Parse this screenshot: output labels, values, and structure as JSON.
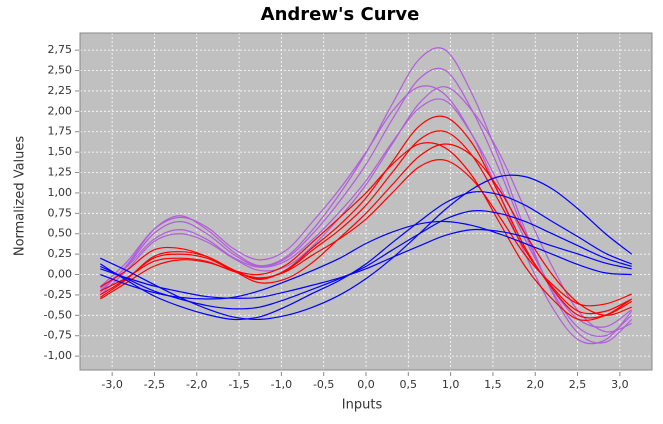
{
  "chart_data": {
    "type": "line",
    "title": "Andrew's Curve",
    "x_label": "Inputs",
    "y_label": "Normalized Values",
    "x": [
      -3.14,
      -2.83,
      -2.51,
      -2.2,
      -1.88,
      -1.57,
      -1.26,
      -0.94,
      -0.63,
      -0.31,
      0,
      0.31,
      0.63,
      0.94,
      1.26,
      1.57,
      1.88,
      2.2,
      2.51,
      2.83,
      3.14
    ],
    "series": [
      {
        "color": "#b25ddb",
        "values": [
          -0.2,
          0.1,
          0.5,
          0.65,
          0.5,
          0.25,
          0.1,
          0.2,
          0.5,
          0.9,
          1.35,
          1.9,
          2.4,
          2.5,
          2.0,
          1.3,
          0.5,
          -0.2,
          -0.65,
          -0.75,
          -0.5
        ]
      },
      {
        "color": "#b25ddb",
        "values": [
          -0.17,
          0.09,
          0.43,
          0.55,
          0.43,
          0.21,
          0.09,
          0.17,
          0.43,
          0.77,
          1.15,
          1.62,
          2.04,
          2.13,
          1.7,
          1.11,
          0.43,
          -0.17,
          -0.55,
          -0.64,
          -0.43
        ]
      },
      {
        "color": "#b25ddb",
        "values": [
          -0.22,
          0.11,
          0.55,
          0.72,
          0.55,
          0.28,
          0.11,
          0.22,
          0.55,
          0.99,
          1.49,
          2.09,
          2.64,
          2.75,
          2.2,
          1.43,
          0.55,
          -0.22,
          -0.72,
          -0.83,
          -0.55
        ]
      },
      {
        "color": "#b25ddb",
        "values": [
          -0.25,
          0.05,
          0.4,
          0.5,
          0.4,
          0.2,
          0.05,
          0.1,
          0.35,
          0.7,
          1.1,
          1.6,
          2.1,
          2.3,
          2.0,
          1.5,
          0.8,
          0.1,
          -0.45,
          -0.7,
          -0.6
        ]
      },
      {
        "color": "#b25ddb",
        "values": [
          -0.15,
          0.15,
          0.55,
          0.7,
          0.58,
          0.32,
          0.18,
          0.3,
          0.65,
          1.05,
          1.5,
          2.0,
          2.3,
          2.2,
          1.7,
          1.0,
          0.25,
          -0.4,
          -0.8,
          -0.8,
          -0.45
        ]
      },
      {
        "color": "#ff0000",
        "values": [
          -0.25,
          -0.05,
          0.2,
          0.25,
          0.2,
          0.05,
          -0.05,
          0.05,
          0.3,
          0.55,
          0.85,
          1.25,
          1.65,
          1.75,
          1.45,
          0.9,
          0.3,
          -0.15,
          -0.45,
          -0.45,
          -0.3
        ]
      },
      {
        "color": "#ff0000",
        "values": [
          -0.2,
          -0.04,
          0.16,
          0.2,
          0.16,
          0.04,
          -0.04,
          0.04,
          0.24,
          0.44,
          0.68,
          1.0,
          1.32,
          1.4,
          1.16,
          0.72,
          0.24,
          -0.12,
          -0.36,
          -0.36,
          -0.24
        ]
      },
      {
        "color": "#ff0000",
        "values": [
          -0.28,
          -0.06,
          0.22,
          0.28,
          0.22,
          0.06,
          -0.06,
          0.06,
          0.33,
          0.61,
          0.94,
          1.38,
          1.82,
          1.93,
          1.6,
          0.99,
          0.33,
          -0.17,
          -0.5,
          -0.5,
          -0.33
        ]
      },
      {
        "color": "#ff0000",
        "values": [
          -0.15,
          0.05,
          0.3,
          0.32,
          0.22,
          0.05,
          -0.1,
          -0.05,
          0.15,
          0.45,
          0.75,
          1.1,
          1.45,
          1.6,
          1.45,
          1.05,
          0.5,
          0.0,
          -0.35,
          -0.5,
          -0.4
        ]
      },
      {
        "color": "#ff0000",
        "values": [
          -0.3,
          -0.1,
          0.1,
          0.18,
          0.15,
          0.05,
          0.0,
          0.12,
          0.4,
          0.7,
          1.0,
          1.35,
          1.6,
          1.55,
          1.2,
          0.65,
          0.1,
          -0.3,
          -0.55,
          -0.5,
          -0.3
        ]
      },
      {
        "color": "#0000ff",
        "values": [
          0.1,
          -0.05,
          -0.2,
          -0.3,
          -0.38,
          -0.42,
          -0.4,
          -0.3,
          -0.18,
          -0.05,
          0.1,
          0.3,
          0.5,
          0.68,
          0.78,
          0.75,
          0.65,
          0.5,
          0.35,
          0.2,
          0.1
        ]
      },
      {
        "color": "#0000ff",
        "values": [
          0.13,
          -0.07,
          -0.26,
          -0.39,
          -0.49,
          -0.55,
          -0.52,
          -0.39,
          -0.23,
          -0.07,
          0.13,
          0.39,
          0.65,
          0.88,
          1.01,
          0.98,
          0.85,
          0.65,
          0.46,
          0.26,
          0.13
        ]
      },
      {
        "color": "#0000ff",
        "values": [
          0.07,
          -0.04,
          -0.14,
          -0.21,
          -0.27,
          -0.29,
          -0.28,
          -0.21,
          -0.13,
          -0.04,
          0.07,
          0.21,
          0.35,
          0.48,
          0.55,
          0.53,
          0.46,
          0.35,
          0.25,
          0.14,
          0.07
        ]
      },
      {
        "color": "#0000ff",
        "values": [
          0.2,
          0.05,
          -0.12,
          -0.28,
          -0.42,
          -0.52,
          -0.55,
          -0.5,
          -0.4,
          -0.25,
          -0.05,
          0.2,
          0.5,
          0.8,
          1.05,
          1.2,
          1.2,
          1.05,
          0.8,
          0.5,
          0.25
        ]
      },
      {
        "color": "#0000ff",
        "values": [
          0.0,
          -0.12,
          -0.22,
          -0.28,
          -0.3,
          -0.28,
          -0.2,
          -0.08,
          0.05,
          0.2,
          0.38,
          0.52,
          0.62,
          0.65,
          0.6,
          0.5,
          0.38,
          0.25,
          0.12,
          0.02,
          0.0
        ]
      }
    ],
    "xlim": [
      -3.38,
      3.38
    ],
    "ylim": [
      -1.17,
      2.96
    ],
    "xticks": [
      {
        "value": -3,
        "label": "-3,0"
      },
      {
        "value": -2.5,
        "label": "-2,5"
      },
      {
        "value": -2,
        "label": "-2,0"
      },
      {
        "value": -1.5,
        "label": "-1,5"
      },
      {
        "value": -1,
        "label": "-1,0"
      },
      {
        "value": -0.5,
        "label": "-0,5"
      },
      {
        "value": 0,
        "label": "0,0"
      },
      {
        "value": 0.5,
        "label": "0,5"
      },
      {
        "value": 1,
        "label": "1,0"
      },
      {
        "value": 1.5,
        "label": "1,5"
      },
      {
        "value": 2,
        "label": "2,0"
      },
      {
        "value": 2.5,
        "label": "2,5"
      },
      {
        "value": 3,
        "label": "3,0"
      }
    ],
    "yticks": [
      {
        "value": -1,
        "label": "-1,00"
      },
      {
        "value": -0.75,
        "label": "-0,75"
      },
      {
        "value": -0.5,
        "label": "-0,50"
      },
      {
        "value": -0.25,
        "label": "-0,25"
      },
      {
        "value": 0,
        "label": "0,00"
      },
      {
        "value": 0.25,
        "label": "0,25"
      },
      {
        "value": 0.5,
        "label": "0,50"
      },
      {
        "value": 0.75,
        "label": "0,75"
      },
      {
        "value": 1,
        "label": "1,00"
      },
      {
        "value": 1.25,
        "label": "1,25"
      },
      {
        "value": 1.5,
        "label": "1,50"
      },
      {
        "value": 1.75,
        "label": "1,75"
      },
      {
        "value": 2,
        "label": "2,00"
      },
      {
        "value": 2.25,
        "label": "2,25"
      },
      {
        "value": 2.5,
        "label": "2,50"
      },
      {
        "value": 2.75,
        "label": "2,75"
      }
    ],
    "grid": true
  }
}
